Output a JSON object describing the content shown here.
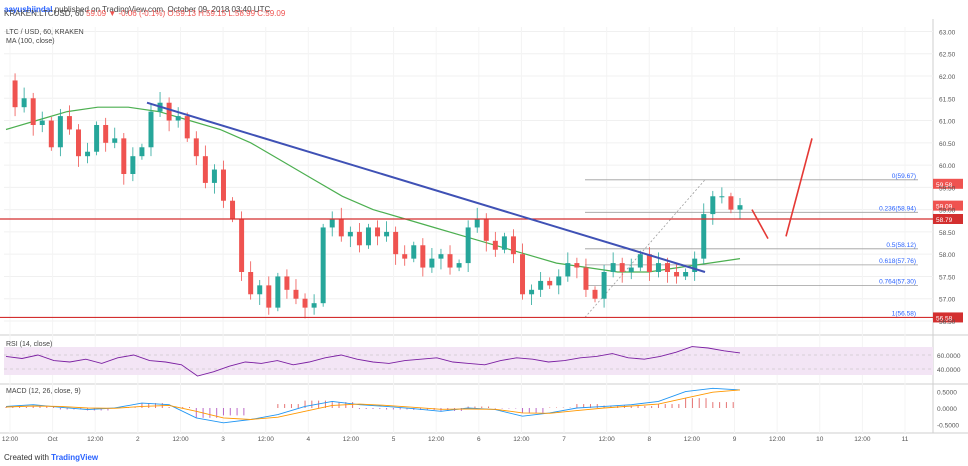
{
  "header": {
    "author": "aayushjindal",
    "published": "published on TradingView.com, October 09, 2018 03:40 UTC",
    "symbol_line": "KRAKEN:LTCUSD, 60",
    "change": "59.09 ▼ -0.06 (-0.1%)",
    "ohlc": "O:59.13 H:59.15 L:58.99 C:59.09"
  },
  "footer": {
    "created_with": "Created with",
    "brand": "TradingView"
  },
  "colors": {
    "up": "#26a69a",
    "down": "#ef5350",
    "ma": "#4caf50",
    "trendline": "#3f51b5",
    "horizontal": "#d32f2f",
    "fib": "#9e9e9e",
    "fib_label": "#2962ff",
    "rsi_band": "#f3e5f5",
    "rsi_line": "#7b1fa2",
    "macd": "#2196f3",
    "signal": "#ff9800",
    "hist_pos": "#e57373",
    "hist_neg": "#ba68c8",
    "scenario": "#e53935"
  },
  "chart_data": {
    "type": "candlestick",
    "symbol": "LTC / USD, 60, KRAKEN",
    "indicator_label": "MA (100, close)",
    "x_tick_labels": [
      "12:00",
      "Oct",
      "12:00",
      "2",
      "12:00",
      "3",
      "12:00",
      "4",
      "12:00",
      "5",
      "12:00",
      "6",
      "12:00",
      "7",
      "12:00",
      "8",
      "12:00",
      "9",
      "12:00",
      "10",
      "12:00",
      "11"
    ],
    "y_tick_labels": [
      "63.00",
      "62.50",
      "62.00",
      "61.50",
      "61.00",
      "60.50",
      "60.00",
      "59.50",
      "59.00",
      "58.50",
      "58.00",
      "57.50",
      "57.00",
      "56.50"
    ],
    "y_range": [
      56.5,
      63.1
    ],
    "price_path": [
      61.9,
      61.3,
      61.5,
      60.9,
      61.0,
      60.4,
      61.1,
      60.8,
      60.2,
      60.3,
      60.9,
      60.5,
      60.6,
      59.8,
      60.2,
      60.4,
      61.2,
      61.4,
      61.0,
      61.1,
      60.6,
      60.2,
      59.6,
      59.9,
      59.2,
      58.8,
      57.6,
      57.1,
      57.3,
      56.8,
      57.5,
      57.2,
      57.0,
      56.8,
      56.9,
      58.6,
      58.8,
      58.4,
      58.5,
      58.2,
      58.6,
      58.4,
      58.5,
      58.0,
      57.9,
      58.2,
      57.7,
      57.9,
      58.0,
      57.7,
      57.8,
      58.6,
      58.8,
      58.3,
      58.1,
      58.4,
      58.0,
      57.1,
      57.2,
      57.4,
      57.3,
      57.5,
      57.8,
      57.7,
      57.2,
      57.0,
      57.6,
      57.8,
      57.6,
      57.7,
      58.0,
      57.6,
      57.8,
      57.6,
      57.5,
      57.6,
      57.9,
      58.9,
      59.3,
      59.3,
      59.0,
      59.1
    ],
    "ma100": [
      60.8,
      61.0,
      61.2,
      61.3,
      61.3,
      61.2,
      61.0,
      60.8,
      60.5,
      60.1,
      59.7,
      59.3,
      59.0,
      58.8,
      58.6,
      58.4,
      58.2,
      58.0,
      57.8,
      57.7,
      57.6,
      57.6,
      57.7,
      57.8,
      57.9
    ],
    "horizontal_levels": [
      {
        "value": 58.79,
        "label": "58.79"
      },
      {
        "value": 56.58,
        "label": "56.58"
      }
    ],
    "price_badges": [
      {
        "value": 59.09,
        "label": "59.09"
      },
      {
        "value": 59.58,
        "label": "59.58"
      }
    ],
    "trendline": {
      "from": [
        61.4
      ],
      "to": [
        57.6
      ]
    },
    "fib_levels": [
      {
        "ratio": "0",
        "value": 59.67,
        "label": "0(59.67)"
      },
      {
        "ratio": "0.236",
        "value": 58.94,
        "label": "0.236(58.94)"
      },
      {
        "ratio": "0.5",
        "value": 58.12,
        "label": "0.5(58.12)"
      },
      {
        "ratio": "0.618",
        "value": 57.76,
        "label": "0.618(57.76)"
      },
      {
        "ratio": "0.764",
        "value": 57.3,
        "label": "0.764(57.30)"
      },
      {
        "ratio": "1",
        "value": 56.58,
        "label": "1(56.58)"
      }
    ],
    "rsi": {
      "label": "RSI (14, close)",
      "levels": [
        "60.0000",
        "40.0000"
      ],
      "values": [
        58,
        55,
        60,
        52,
        50,
        54,
        48,
        56,
        60,
        52,
        50,
        46,
        30,
        36,
        44,
        50,
        48,
        52,
        46,
        50,
        56,
        60,
        54,
        50,
        48,
        52,
        54,
        56,
        50,
        48,
        46,
        52,
        56,
        54,
        50,
        52,
        56,
        58,
        62,
        56,
        54,
        58,
        64,
        72,
        70,
        66,
        63
      ]
    },
    "macd": {
      "label": "MACD (12, 26, close, 9)",
      "levels": [
        "0.5000",
        "0.0000",
        "-0.5000"
      ],
      "macd_line": [
        0.05,
        0.1,
        0.02,
        -0.05,
        0.0,
        0.15,
        0.1,
        -0.3,
        -0.45,
        -0.35,
        -0.2,
        0.05,
        0.2,
        0.1,
        0.05,
        -0.02,
        -0.1,
        0.0,
        -0.05,
        -0.25,
        -0.15,
        0.0,
        0.05,
        0.1,
        0.2,
        0.5,
        0.6,
        0.55
      ],
      "signal_line": [
        0.03,
        0.06,
        0.05,
        0.0,
        -0.01,
        0.05,
        0.08,
        -0.1,
        -0.3,
        -0.35,
        -0.28,
        -0.1,
        0.08,
        0.12,
        0.08,
        0.02,
        -0.04,
        -0.03,
        -0.04,
        -0.15,
        -0.16,
        -0.08,
        0.0,
        0.06,
        0.12,
        0.3,
        0.48,
        0.55
      ]
    }
  }
}
